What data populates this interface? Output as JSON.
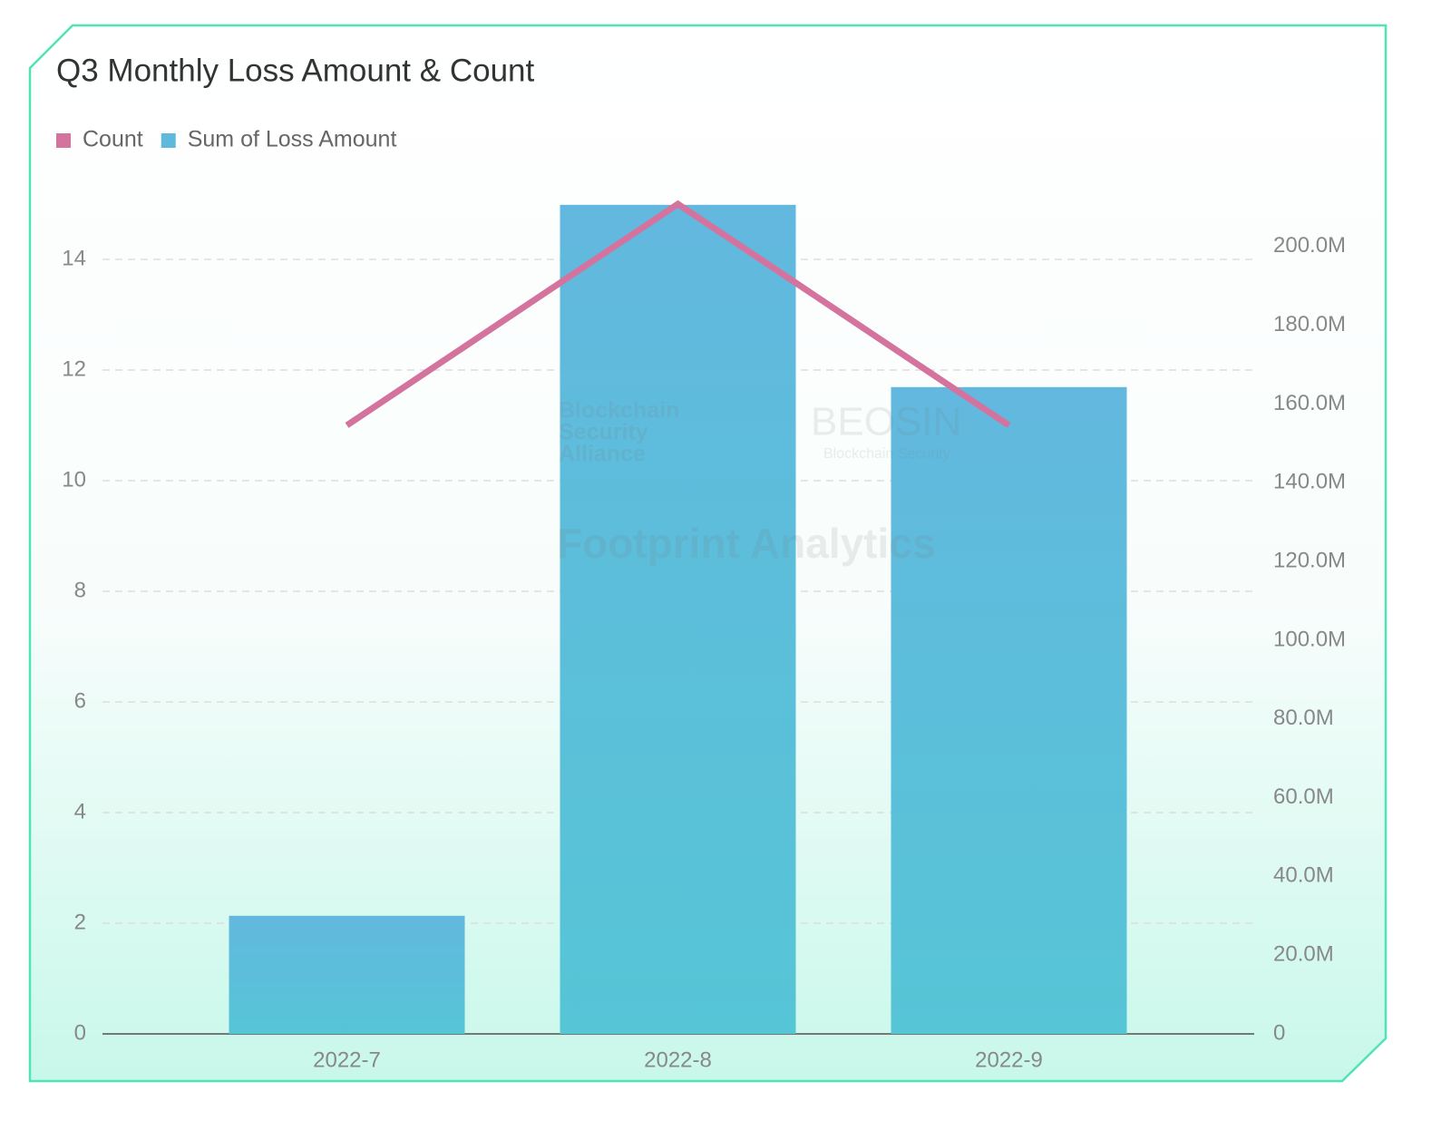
{
  "chart_data": {
    "type": "bar-line",
    "title": "Q3 Monthly Loss Amount & Count",
    "categories": [
      "2022-7",
      "2022-8",
      "2022-9"
    ],
    "series": [
      {
        "name": "Count",
        "type": "line",
        "color": "#d4739d",
        "values": [
          11,
          15,
          11
        ]
      },
      {
        "name": "Sum of Loss Amount",
        "type": "bar",
        "axis": "y2",
        "color": "#5fb9dc",
        "values": [
          30000000,
          210600000,
          164300000
        ]
      }
    ],
    "ylim": [
      0,
      15
    ],
    "yticks": [
      0,
      2,
      4,
      6,
      8,
      10,
      12,
      14
    ],
    "y2lim": [
      0,
      210800000
    ],
    "y2ticks": [
      0,
      {
        "value": 20000000,
        "label": "20.0M"
      },
      {
        "value": 40000000,
        "label": "40.0M"
      },
      {
        "value": 60000000,
        "label": "60.0M"
      },
      {
        "value": 80000000,
        "label": "80.0M"
      },
      {
        "value": 100000000,
        "label": "100.0M"
      },
      {
        "value": 120000000,
        "label": "120.0M"
      },
      {
        "value": 140000000,
        "label": "140.0M"
      },
      {
        "value": 160000000,
        "label": "160.0M"
      },
      {
        "value": 180000000,
        "label": "180.0M"
      },
      {
        "value": 200000000,
        "label": "200.0M"
      }
    ],
    "grid": true,
    "legend": "top-left",
    "watermarks": [
      "Blockchain",
      "Security",
      "Alliance",
      "BEOSIN",
      "Blockchain Security",
      "Footprint Analytics"
    ]
  }
}
